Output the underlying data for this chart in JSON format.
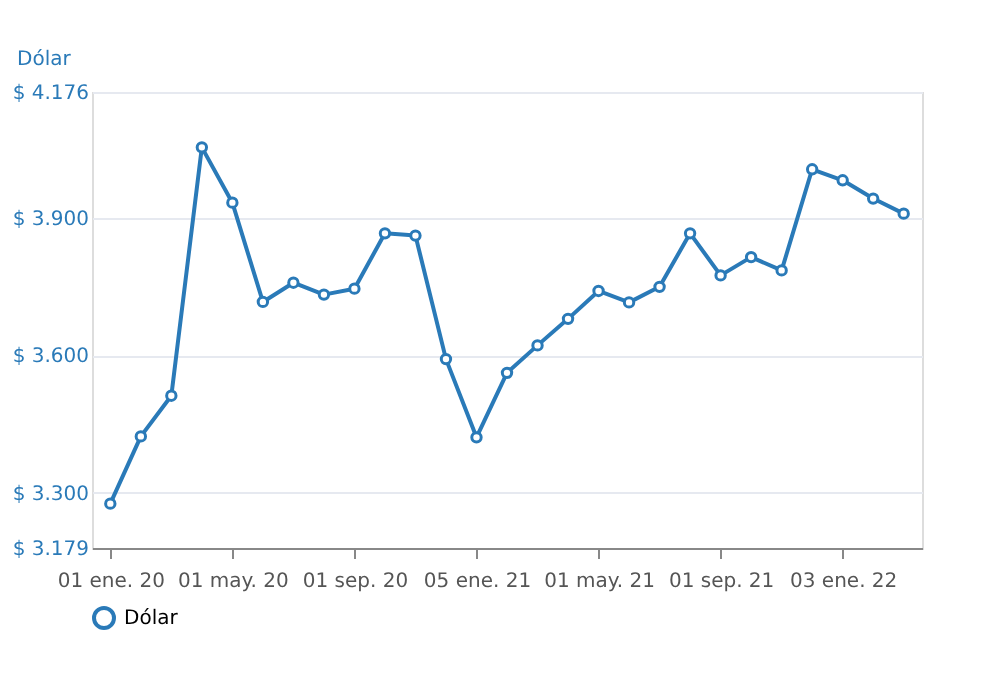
{
  "chart_data": {
    "type": "line",
    "ylabel": "Dólar",
    "categories": [
      "01 ene. 20",
      null,
      null,
      null,
      "01 may. 20",
      null,
      null,
      null,
      "01 sep. 20",
      null,
      null,
      null,
      "05 ene. 21",
      null,
      null,
      null,
      "01 may. 21",
      null,
      null,
      null,
      "01 sep. 21",
      null,
      null,
      null,
      "03 ene. 22",
      null,
      null
    ],
    "series": [
      {
        "name": "Dólar",
        "color": "#2a7ab8",
        "values": [
          3276,
          3423,
          3512,
          4055,
          3934,
          3717,
          3759,
          3733,
          3746,
          3867,
          3862,
          3592,
          3421,
          3562,
          3622,
          3680,
          3741,
          3716,
          3750,
          3867,
          3775,
          3815,
          3786,
          4007,
          3983,
          3943,
          3910
        ]
      }
    ],
    "ylim": [
      3179,
      4176
    ],
    "yticks": [
      {
        "value": 3179,
        "label": "$ 3.179"
      },
      {
        "value": 3300,
        "label": "$ 3.300"
      },
      {
        "value": 3600,
        "label": "$ 3.600"
      },
      {
        "value": 3900,
        "label": "$ 3.900"
      },
      {
        "value": 4176,
        "label": "$ 4.176"
      }
    ],
    "grid": "y",
    "legend": "bottom",
    "marker": "circle",
    "line_style": "solid"
  }
}
